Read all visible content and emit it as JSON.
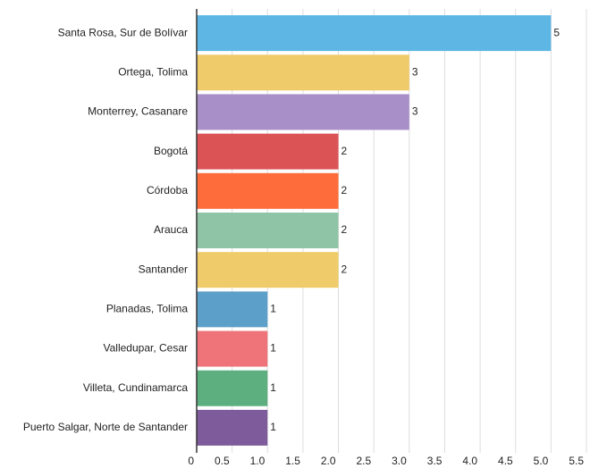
{
  "chart_data": {
    "type": "hbar",
    "categories": [
      "Santa Rosa, Sur de Bolívar",
      "Ortega, Tolima",
      "Monterrey, Casanare",
      "Bogotá",
      "Córdoba",
      "Arauca",
      "Santander",
      "Planadas, Tolima",
      "Valledupar, Cesar",
      "Villeta, Cundinamarca",
      "Puerto Salgar, Norte de Santander"
    ],
    "values": [
      5,
      3,
      3,
      2,
      2,
      2,
      2,
      1,
      1,
      1,
      1
    ],
    "colors": [
      "#5db6e4",
      "#f0cb69",
      "#a98fc8",
      "#dc5356",
      "#fd6c3a",
      "#8fc4a6",
      "#f0cb69",
      "#5c9fc8",
      "#ee7479",
      "#5daf7f",
      "#7e5b9b"
    ],
    "xlim": [
      0,
      5.5
    ],
    "xticks": [
      0,
      0.5,
      {
        "value": 1,
        "label": "1.0"
      },
      1.5,
      {
        "value": 2,
        "label": "2.0"
      },
      2.5,
      {
        "value": 3,
        "label": "3.0"
      },
      3.5,
      {
        "value": 4,
        "label": "4.0"
      },
      4.5,
      {
        "value": 5,
        "label": "5.0"
      },
      5.5
    ],
    "grid": true
  }
}
